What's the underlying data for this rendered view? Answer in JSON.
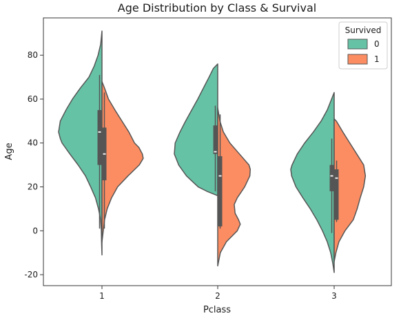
{
  "chart_data": {
    "type": "violin",
    "title": "Age Distribution by Class & Survival",
    "xlabel": "Pclass",
    "ylabel": "Age",
    "categories": [
      "1",
      "2",
      "3"
    ],
    "ylim": [
      -25,
      97
    ],
    "yticks": [
      -20,
      0,
      20,
      40,
      60,
      80
    ],
    "grid": false,
    "split": true,
    "legend": {
      "title": "Survived",
      "placement": "top-right",
      "entries": [
        {
          "label": "0",
          "color": "#66c2a5"
        },
        {
          "label": "1",
          "color": "#fc8d62"
        }
      ]
    },
    "series": [
      {
        "name": "0",
        "color": "#66c2a5",
        "side": "left",
        "violins": [
          {
            "category": "1",
            "profile": [
              [
                -11,
                0
              ],
              [
                -5,
                0.01
              ],
              [
                0,
                0.015
              ],
              [
                5,
                0.03
              ],
              [
                10,
                0.08
              ],
              [
                15,
                0.15
              ],
              [
                20,
                0.26
              ],
              [
                25,
                0.38
              ],
              [
                30,
                0.55
              ],
              [
                35,
                0.74
              ],
              [
                40,
                0.92
              ],
              [
                42,
                0.96
              ],
              [
                45,
                1.0
              ],
              [
                50,
                0.96
              ],
              [
                55,
                0.83
              ],
              [
                60,
                0.68
              ],
              [
                65,
                0.5
              ],
              [
                70,
                0.3
              ],
              [
                75,
                0.18
              ],
              [
                80,
                0.09
              ],
              [
                85,
                0.03
              ],
              [
                91,
                0
              ]
            ],
            "box": {
              "q1": 30,
              "median": 45,
              "q3": 55,
              "whisker_low": 1,
              "whisker_high": 71
            }
          },
          {
            "category": "2",
            "profile": [
              [
                16,
                0
              ],
              [
                18,
                0.25
              ],
              [
                20,
                0.45
              ],
              [
                25,
                0.72
              ],
              [
                30,
                0.9
              ],
              [
                35,
                1.0
              ],
              [
                40,
                0.98
              ],
              [
                45,
                0.87
              ],
              [
                50,
                0.74
              ],
              [
                55,
                0.6
              ],
              [
                60,
                0.46
              ],
              [
                65,
                0.33
              ],
              [
                70,
                0.2
              ],
              [
                74,
                0.1
              ],
              [
                76,
                0
              ]
            ],
            "box": {
              "q1": 35,
              "median": 36,
              "q3": 48,
              "whisker_low": 18,
              "whisker_high": 57
            }
          },
          {
            "category": "3",
            "profile": [
              [
                -19,
                0
              ],
              [
                -15,
                0.03
              ],
              [
                -10,
                0.08
              ],
              [
                -5,
                0.16
              ],
              [
                0,
                0.27
              ],
              [
                5,
                0.4
              ],
              [
                10,
                0.55
              ],
              [
                15,
                0.72
              ],
              [
                20,
                0.88
              ],
              [
                25,
                0.98
              ],
              [
                28,
                1.0
              ],
              [
                30,
                0.97
              ],
              [
                35,
                0.85
              ],
              [
                40,
                0.68
              ],
              [
                45,
                0.48
              ],
              [
                50,
                0.3
              ],
              [
                55,
                0.16
              ],
              [
                60,
                0.06
              ],
              [
                63,
                0
              ]
            ],
            "box": {
              "q1": 18,
              "median": 25,
              "q3": 30,
              "whisker_low": -1,
              "whisker_high": 42
            }
          }
        ]
      },
      {
        "name": "1",
        "color": "#fc8d62",
        "side": "right",
        "violins": [
          {
            "category": "1",
            "profile": [
              [
                -5,
                0
              ],
              [
                0,
                0.03
              ],
              [
                5,
                0.06
              ],
              [
                10,
                0.12
              ],
              [
                15,
                0.22
              ],
              [
                20,
                0.36
              ],
              [
                25,
                0.6
              ],
              [
                30,
                0.86
              ],
              [
                33,
                0.95
              ],
              [
                35,
                0.93
              ],
              [
                38,
                0.85
              ],
              [
                40,
                0.75
              ],
              [
                45,
                0.62
              ],
              [
                50,
                0.46
              ],
              [
                55,
                0.3
              ],
              [
                60,
                0.15
              ],
              [
                65,
                0.06
              ],
              [
                68,
                0
              ]
            ],
            "box": {
              "q1": 23,
              "median": 35,
              "q3": 47,
              "whisker_low": 1,
              "whisker_high": 63
            }
          },
          {
            "category": "2",
            "profile": [
              [
                -16,
                0
              ],
              [
                -10,
                0.06
              ],
              [
                -5,
                0.2
              ],
              [
                0,
                0.45
              ],
              [
                3,
                0.52
              ],
              [
                5,
                0.48
              ],
              [
                8,
                0.4
              ],
              [
                12,
                0.38
              ],
              [
                15,
                0.45
              ],
              [
                20,
                0.62
              ],
              [
                25,
                0.74
              ],
              [
                28,
                0.75
              ],
              [
                30,
                0.72
              ],
              [
                35,
                0.5
              ],
              [
                40,
                0.28
              ],
              [
                45,
                0.13
              ],
              [
                50,
                0.05
              ],
              [
                56,
                0
              ]
            ],
            "box": {
              "q1": 2,
              "median": 25,
              "q3": 34,
              "whisker_low": 1,
              "whisker_high": 53
            }
          },
          {
            "category": "3",
            "profile": [
              [
                -14,
                0
              ],
              [
                -10,
                0.04
              ],
              [
                -5,
                0.11
              ],
              [
                0,
                0.25
              ],
              [
                5,
                0.44
              ],
              [
                10,
                0.53
              ],
              [
                15,
                0.6
              ],
              [
                20,
                0.68
              ],
              [
                25,
                0.72
              ],
              [
                30,
                0.68
              ],
              [
                35,
                0.52
              ],
              [
                40,
                0.36
              ],
              [
                45,
                0.2
              ],
              [
                50,
                0.05
              ],
              [
                51,
                0
              ]
            ],
            "box": {
              "q1": 5,
              "median": 24,
              "q3": 28,
              "whisker_low": 4,
              "whisker_high": 32
            }
          }
        ]
      }
    ]
  }
}
